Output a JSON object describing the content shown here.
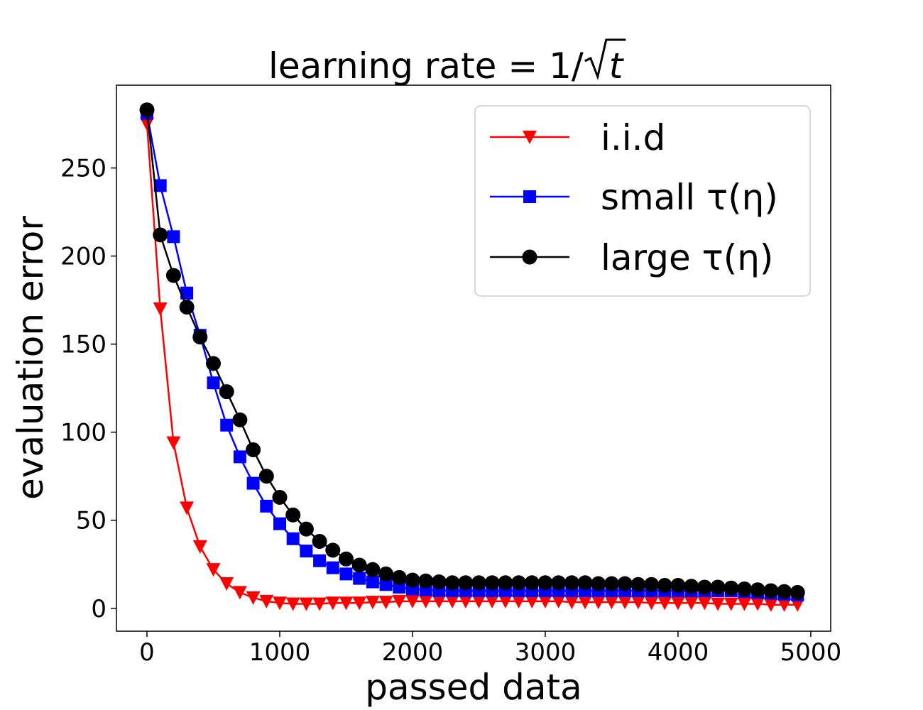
{
  "chart_data": {
    "type": "line",
    "title": "learning rate = 1/√t",
    "title_prefix": "learning rate = 1/",
    "title_var": "t",
    "xlabel": "passed data",
    "ylabel": "evaluation error",
    "xlim": [
      -230,
      5150
    ],
    "ylim": [
      -13,
      297
    ],
    "xticks": [
      0,
      1000,
      2000,
      3000,
      4000,
      5000
    ],
    "xtick_labels": [
      "0",
      "1000",
      "2000",
      "3000",
      "4000",
      "5000"
    ],
    "yticks": [
      0,
      50,
      100,
      150,
      200,
      250
    ],
    "ytick_labels": [
      "0",
      "50",
      "100",
      "150",
      "200",
      "250"
    ],
    "grid": false,
    "legend_position": "top-right",
    "x": [
      0,
      100,
      200,
      300,
      400,
      500,
      600,
      700,
      800,
      900,
      1000,
      1100,
      1200,
      1300,
      1400,
      1500,
      1600,
      1700,
      1800,
      1900,
      2000,
      2100,
      2200,
      2300,
      2400,
      2500,
      2600,
      2700,
      2800,
      2900,
      3000,
      3100,
      3200,
      3300,
      3400,
      3500,
      3600,
      3700,
      3800,
      3900,
      4000,
      4100,
      4200,
      4300,
      4400,
      4500,
      4600,
      4700,
      4800,
      4900
    ],
    "series": [
      {
        "name": "i.i.d",
        "color": "#ff0000",
        "marker": "triangle-down",
        "values": [
          275,
          170,
          94,
          57,
          35,
          22,
          14,
          9,
          6,
          4,
          3,
          2.5,
          2.5,
          2.5,
          3,
          3,
          3,
          3.5,
          3.5,
          4,
          4,
          4,
          4,
          4,
          4,
          4,
          4,
          4,
          4,
          4,
          4,
          4,
          3.5,
          3.5,
          3.5,
          3.5,
          3.5,
          3.5,
          3,
          3,
          3,
          3,
          3,
          2.5,
          2.5,
          2.5,
          2.5,
          2,
          2,
          2
        ]
      },
      {
        "name": "small τ(η)",
        "color": "#0000ff",
        "marker": "square",
        "values": [
          281,
          240,
          211,
          179,
          155,
          128,
          104,
          86,
          71,
          58,
          48,
          39.5,
          32.5,
          27,
          23,
          19.5,
          17,
          15,
          13.5,
          12,
          11,
          10.5,
          10,
          10,
          10,
          10,
          10,
          10,
          10,
          10,
          10,
          10,
          10,
          10,
          10,
          10,
          10,
          10,
          10,
          10,
          10,
          10,
          10,
          10,
          10,
          9.5,
          9,
          8.5,
          8,
          7.5
        ]
      },
      {
        "name": "large τ(η)",
        "color": "#000000",
        "marker": "circle",
        "values": [
          283,
          212,
          189,
          171,
          154,
          139,
          123,
          107,
          90,
          75,
          63,
          53,
          45,
          38,
          33,
          28,
          24.5,
          22,
          19.5,
          17.5,
          16,
          15.5,
          15,
          14.5,
          14.5,
          14.5,
          14.5,
          14.5,
          14.5,
          14.5,
          14.5,
          14.5,
          14.5,
          14.5,
          14,
          14,
          14,
          13.5,
          13.5,
          13,
          13,
          12.5,
          12,
          12,
          11.5,
          11,
          10.5,
          10,
          9.5,
          9
        ]
      }
    ]
  }
}
